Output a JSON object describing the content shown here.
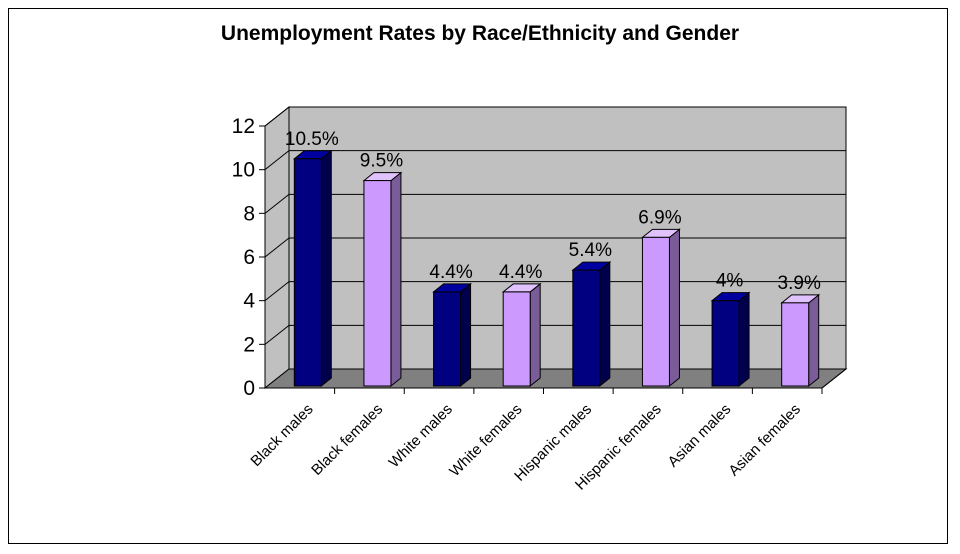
{
  "chart_data": {
    "type": "bar",
    "title": "Unemployment Rates by Race/Ethnicity and Gender",
    "xlabel": "",
    "ylabel": "",
    "ylim": [
      0,
      12
    ],
    "yticks": [
      "0",
      "2",
      "4",
      "6",
      "8",
      "10",
      "12"
    ],
    "categories": [
      "Black males",
      "Black females",
      "White males",
      "White females",
      "Hispanic males",
      "Hispanic females",
      "Asian males",
      "Asian females"
    ],
    "values": [
      10.5,
      9.5,
      4.4,
      4.4,
      5.4,
      6.9,
      4,
      3.9
    ],
    "data_labels": [
      "10.5%",
      "9.5%",
      "4.4%",
      "4.4%",
      "5.4%",
      "6.9%",
      "4%",
      "3.9%"
    ],
    "grid": true,
    "legend": "none",
    "style": "3d",
    "colors": {
      "males": "#000080",
      "females": "#cc99ff",
      "wall": "#c0c0c0",
      "floor": "#808080"
    }
  }
}
